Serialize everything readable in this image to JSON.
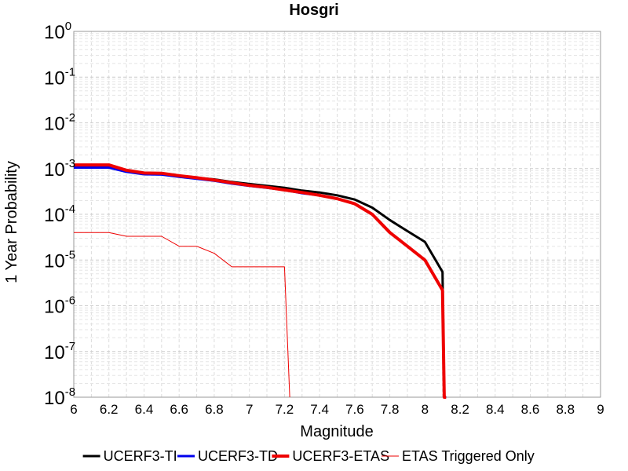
{
  "chart_data": {
    "type": "line",
    "title": "Hosgri",
    "xlabel": "Magnitude",
    "ylabel": "1 Year Probability",
    "xlim": [
      6,
      9
    ],
    "ylim": [
      1e-08,
      1
    ],
    "yscale": "log",
    "grid": true,
    "legend_placement": "bottom",
    "x_ticks": [
      "6",
      "6.2",
      "6.4",
      "6.6",
      "6.8",
      "7",
      "7.2",
      "7.4",
      "7.6",
      "7.8",
      "8",
      "8.2",
      "8.4",
      "8.6",
      "8.8",
      "9"
    ],
    "y_ticks": [
      {
        "base": "10",
        "exp": "0",
        "value": 1
      },
      {
        "base": "10",
        "exp": "-1",
        "value": 0.1
      },
      {
        "base": "10",
        "exp": "-2",
        "value": 0.01
      },
      {
        "base": "10",
        "exp": "-3",
        "value": 0.001
      },
      {
        "base": "10",
        "exp": "-4",
        "value": 0.0001
      },
      {
        "base": "10",
        "exp": "-5",
        "value": 1e-05
      },
      {
        "base": "10",
        "exp": "-6",
        "value": 1e-06
      },
      {
        "base": "10",
        "exp": "-7",
        "value": 1e-07
      },
      {
        "base": "10",
        "exp": "-8",
        "value": 1e-08
      }
    ],
    "series": [
      {
        "name": "UCERF3-TI",
        "color": "#000000",
        "width": 3,
        "x": [
          6.0,
          6.1,
          6.2,
          6.3,
          6.4,
          6.5,
          6.6,
          6.7,
          6.8,
          6.9,
          7.0,
          7.1,
          7.2,
          7.3,
          7.4,
          7.5,
          7.6,
          7.7,
          7.8,
          7.9,
          8.0,
          8.1,
          8.11,
          8.12
        ],
        "y": [
          0.0011,
          0.0011,
          0.0011,
          0.00088,
          0.00078,
          0.00077,
          0.00069,
          0.00063,
          0.00058,
          0.00051,
          0.00046,
          0.00042,
          0.00038,
          0.00033,
          0.0003,
          0.00026,
          0.00021,
          0.00014,
          7.5e-05,
          4.3e-05,
          2.5e-05,
          5.5e-06,
          1e-08,
          1e-08
        ]
      },
      {
        "name": "UCERF3-TD",
        "color": "#0000ee",
        "width": 3,
        "x": [
          6.0,
          6.1,
          6.2,
          6.3,
          6.4,
          6.5,
          6.6,
          6.7,
          6.8,
          6.9,
          7.0,
          7.1,
          7.2,
          7.3,
          7.4,
          7.5,
          7.6,
          7.7,
          7.8,
          7.9,
          8.0,
          8.1,
          8.11,
          8.12
        ],
        "y": [
          0.00105,
          0.00105,
          0.00105,
          0.00085,
          0.00075,
          0.00074,
          0.00066,
          0.0006,
          0.00054,
          0.00047,
          0.00042,
          0.00038,
          0.00034,
          0.00029,
          0.00026,
          0.00022,
          0.00017,
          0.0001,
          4e-05,
          2e-05,
          1e-05,
          2.2e-06,
          1e-08,
          1e-08
        ]
      },
      {
        "name": "UCERF3-ETAS",
        "color": "#ee0000",
        "width": 4,
        "x": [
          6.0,
          6.1,
          6.2,
          6.3,
          6.4,
          6.5,
          6.6,
          6.7,
          6.8,
          6.9,
          7.0,
          7.1,
          7.2,
          7.3,
          7.4,
          7.5,
          7.6,
          7.7,
          7.8,
          7.9,
          8.0,
          8.1,
          8.11,
          8.12
        ],
        "y": [
          0.0012,
          0.0012,
          0.0012,
          0.00092,
          0.0008,
          0.00079,
          0.0007,
          0.00063,
          0.00056,
          0.00049,
          0.00043,
          0.00039,
          0.00034,
          0.0003,
          0.00026,
          0.00022,
          0.00017,
          0.0001,
          4e-05,
          2e-05,
          1e-05,
          2.2e-06,
          1e-08,
          1e-08
        ]
      },
      {
        "name": "ETAS Triggered Only",
        "color": "#ee0000",
        "width": 1,
        "x": [
          6.0,
          6.1,
          6.2,
          6.3,
          6.4,
          6.5,
          6.6,
          6.7,
          6.8,
          6.9,
          7.0,
          7.1,
          7.2,
          7.23
        ],
        "y": [
          4e-05,
          4e-05,
          4e-05,
          3.3e-05,
          3.3e-05,
          3.3e-05,
          2e-05,
          2e-05,
          1.4e-05,
          7.1e-06,
          7.1e-06,
          7.1e-06,
          7.1e-06,
          1e-08
        ]
      }
    ]
  }
}
